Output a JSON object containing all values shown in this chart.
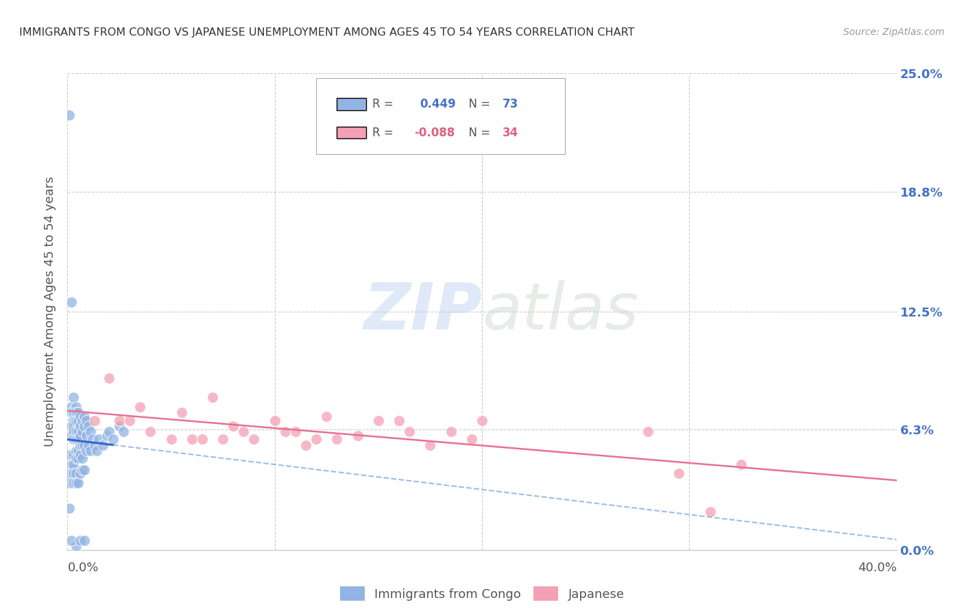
{
  "title": "IMMIGRANTS FROM CONGO VS JAPANESE UNEMPLOYMENT AMONG AGES 45 TO 54 YEARS CORRELATION CHART",
  "source": "Source: ZipAtlas.com",
  "ylabel": "Unemployment Among Ages 45 to 54 years",
  "xlim": [
    0.0,
    0.4
  ],
  "ylim": [
    0.0,
    0.25
  ],
  "ytick_vals": [
    0.0,
    0.063,
    0.125,
    0.188,
    0.25
  ],
  "ytick_labels": [
    "0.0%",
    "6.3%",
    "12.5%",
    "18.8%",
    "25.0%"
  ],
  "xtick_vals": [
    0.0,
    0.1,
    0.2,
    0.3,
    0.4
  ],
  "xtick_labels_show": [
    "0.0%",
    "",
    "",
    "",
    "40.0%"
  ],
  "legend_line1": "R =  0.449   N = 73",
  "legend_line2": "R = -0.088   N = 34",
  "congo_color": "#92b4e3",
  "japanese_color": "#f4a0b5",
  "congo_solid_color": "#3366cc",
  "japanese_line_color": "#e87090",
  "watermark_zip": "ZIP",
  "watermark_atlas": "atlas",
  "bg_color": "#ffffff",
  "grid_color": "#cccccc",
  "congo_x": [
    0.001,
    0.001,
    0.001,
    0.001,
    0.001,
    0.002,
    0.002,
    0.002,
    0.002,
    0.002,
    0.002,
    0.003,
    0.003,
    0.003,
    0.003,
    0.003,
    0.003,
    0.003,
    0.003,
    0.003,
    0.003,
    0.004,
    0.004,
    0.004,
    0.004,
    0.004,
    0.004,
    0.004,
    0.004,
    0.004,
    0.005,
    0.005,
    0.005,
    0.005,
    0.005,
    0.005,
    0.005,
    0.006,
    0.006,
    0.006,
    0.006,
    0.006,
    0.006,
    0.007,
    0.007,
    0.007,
    0.007,
    0.007,
    0.008,
    0.008,
    0.008,
    0.008,
    0.009,
    0.009,
    0.009,
    0.01,
    0.01,
    0.011,
    0.011,
    0.012,
    0.013,
    0.014,
    0.015,
    0.017,
    0.019,
    0.02,
    0.022,
    0.025,
    0.027,
    0.004,
    0.002,
    0.006,
    0.008
  ],
  "congo_y": [
    0.228,
    0.05,
    0.04,
    0.035,
    0.022,
    0.13,
    0.075,
    0.072,
    0.065,
    0.06,
    0.045,
    0.08,
    0.072,
    0.068,
    0.065,
    0.062,
    0.058,
    0.05,
    0.045,
    0.04,
    0.035,
    0.075,
    0.072,
    0.068,
    0.062,
    0.058,
    0.052,
    0.048,
    0.04,
    0.035,
    0.072,
    0.068,
    0.062,
    0.058,
    0.052,
    0.048,
    0.035,
    0.07,
    0.065,
    0.06,
    0.055,
    0.05,
    0.04,
    0.068,
    0.062,
    0.055,
    0.048,
    0.042,
    0.07,
    0.065,
    0.055,
    0.042,
    0.068,
    0.06,
    0.052,
    0.065,
    0.055,
    0.062,
    0.052,
    0.058,
    0.055,
    0.052,
    0.058,
    0.055,
    0.06,
    0.062,
    0.058,
    0.065,
    0.062,
    0.002,
    0.005,
    0.005,
    0.005
  ],
  "japanese_x": [
    0.013,
    0.02,
    0.025,
    0.03,
    0.035,
    0.04,
    0.05,
    0.055,
    0.06,
    0.065,
    0.07,
    0.075,
    0.08,
    0.085,
    0.09,
    0.1,
    0.105,
    0.11,
    0.115,
    0.12,
    0.125,
    0.13,
    0.14,
    0.15,
    0.16,
    0.165,
    0.175,
    0.185,
    0.195,
    0.2,
    0.28,
    0.295,
    0.31,
    0.325
  ],
  "japanese_y": [
    0.068,
    0.09,
    0.068,
    0.068,
    0.075,
    0.062,
    0.058,
    0.072,
    0.058,
    0.058,
    0.08,
    0.058,
    0.065,
    0.062,
    0.058,
    0.068,
    0.062,
    0.062,
    0.055,
    0.058,
    0.07,
    0.058,
    0.06,
    0.068,
    0.068,
    0.062,
    0.055,
    0.062,
    0.058,
    0.068,
    0.062,
    0.04,
    0.02,
    0.045
  ]
}
